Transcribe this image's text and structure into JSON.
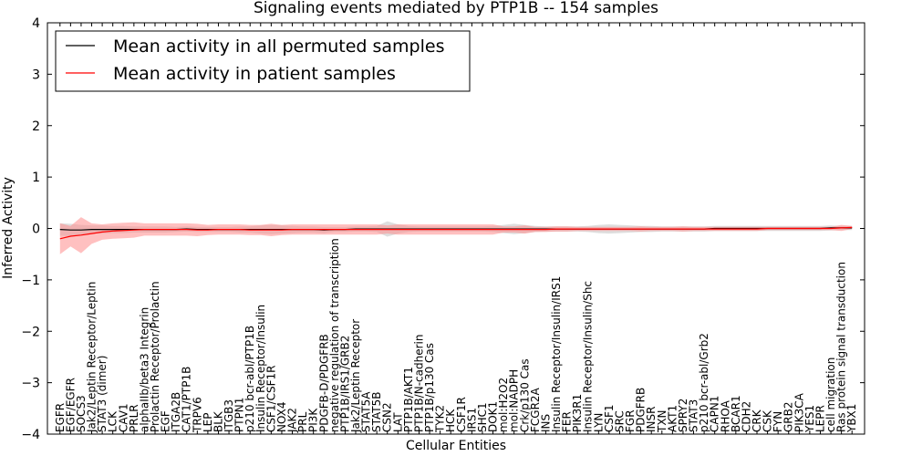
{
  "chart_data": {
    "type": "line",
    "title": "Signaling events mediated by PTP1B -- 154 samples",
    "xlabel": "Cellular Entities",
    "ylabel": "Inferred Activity",
    "ylim": [
      -4,
      4
    ],
    "yticks": [
      -4,
      -3,
      -2,
      -1,
      0,
      1,
      2,
      3,
      4
    ],
    "categories": [
      "EGFR",
      "EGF/EGFR",
      "SOCS3",
      "Jak2/Leptin Receptor/Leptin",
      "STAT3 (dimer)",
      "LCK",
      "CAV1",
      "PRLR",
      "alphaIIb/beta3 Integrin",
      "Prolactin Receptor/Prolactin",
      "EGF",
      "ITGA2B",
      "CAT1/PTP1B",
      "TRPV6",
      "LEP",
      "BLK",
      "ITGB3",
      "PTPN1",
      "p210 bcr-abl/PTP1B",
      "Insulin Receptor/Insulin",
      "CSF1/CSF1R",
      "NOX4",
      "JAK2",
      "PRL",
      "PI3K",
      "PDGFB-D/PDGFRB",
      "negative regulation of transcription",
      "PTP1B/IRS1/GRB2",
      "Jak2/Leptin Receptor",
      "STAT5A",
      "STAT5B",
      "CSN2",
      "LAT",
      "PTP1B/AKT1",
      "PTP1B/N-cadherin",
      "PTP1B/p130 Cas",
      "TYK2",
      "HCK",
      "CSF1R",
      "IRS1",
      "SHC1",
      "DOK1",
      "mol:H2O2",
      "mol:NADPH",
      "Crk/p130 Cas",
      "FCGR2A",
      "INS",
      "Insulin Receptor/Insulin/IRS1",
      "FER",
      "PIK3R1",
      "Insulin Receptor/Insulin/Shc",
      "LYN",
      "CSF1",
      "SRC",
      "FGR",
      "PDGFRB",
      "INSR",
      "TXN",
      "AKT1",
      "SPRY2",
      "STAT3",
      "p210 bcr-abl/Grb2",
      "CAPN1",
      "RHOA",
      "BCAR1",
      "CDH2",
      "CRK",
      "CSK",
      "FYN",
      "GRB2",
      "PIK3CA",
      "YES1",
      "LEPR",
      "cell migration",
      "Ras protein signal transduction",
      "YBX1"
    ],
    "series": [
      {
        "name": "Mean activity in all permuted samples",
        "color": "#000000",
        "values": [
          -0.02,
          -0.03,
          -0.03,
          -0.02,
          -0.02,
          -0.02,
          -0.02,
          -0.02,
          -0.02,
          -0.02,
          -0.02,
          -0.02,
          -0.01,
          -0.02,
          -0.02,
          -0.02,
          -0.02,
          -0.02,
          -0.02,
          -0.02,
          -0.02,
          -0.02,
          -0.02,
          -0.02,
          -0.02,
          -0.03,
          -0.02,
          -0.02,
          -0.01,
          -0.01,
          -0.01,
          -0.01,
          -0.01,
          -0.01,
          -0.01,
          -0.01,
          -0.01,
          -0.01,
          -0.01,
          -0.01,
          -0.01,
          -0.01,
          -0.01,
          -0.01,
          -0.01,
          -0.01,
          -0.01,
          -0.01,
          -0.01,
          -0.01,
          -0.01,
          -0.01,
          -0.01,
          -0.01,
          -0.01,
          -0.01,
          -0.01,
          -0.01,
          -0.01,
          -0.01,
          -0.01,
          -0.01,
          0.0,
          0.0,
          0.0,
          0.0,
          0.0,
          0.0,
          0.0,
          0.0,
          0.0,
          0.0,
          0.0,
          0.01,
          0.01,
          0.01
        ],
        "band": [
          0.12,
          0.12,
          0.1,
          0.08,
          0.08,
          0.07,
          0.07,
          0.06,
          0.06,
          0.06,
          0.06,
          0.05,
          0.05,
          0.05,
          0.05,
          0.05,
          0.05,
          0.06,
          0.06,
          0.08,
          0.09,
          0.08,
          0.07,
          0.06,
          0.06,
          0.06,
          0.05,
          0.05,
          0.05,
          0.05,
          0.06,
          0.15,
          0.09,
          0.06,
          0.05,
          0.05,
          0.05,
          0.05,
          0.05,
          0.05,
          0.05,
          0.06,
          0.08,
          0.1,
          0.08,
          0.06,
          0.05,
          0.05,
          0.05,
          0.05,
          0.06,
          0.08,
          0.09,
          0.08,
          0.07,
          0.06,
          0.06,
          0.05,
          0.05,
          0.05,
          0.05,
          0.05,
          0.05,
          0.05,
          0.05,
          0.05,
          0.05,
          0.05,
          0.05,
          0.05,
          0.05,
          0.05,
          0.05,
          0.05,
          0.04,
          0.04
        ]
      },
      {
        "name": "Mean activity in patient samples",
        "color": "#ff0000",
        "values": [
          -0.2,
          -0.15,
          -0.13,
          -0.1,
          -0.07,
          -0.05,
          -0.04,
          -0.03,
          -0.02,
          -0.02,
          -0.02,
          -0.02,
          -0.02,
          -0.03,
          -0.03,
          -0.02,
          -0.02,
          -0.02,
          -0.03,
          -0.03,
          -0.03,
          -0.03,
          -0.02,
          -0.02,
          -0.02,
          -0.02,
          -0.02,
          -0.02,
          -0.02,
          -0.02,
          -0.02,
          -0.02,
          -0.02,
          -0.02,
          -0.02,
          -0.02,
          -0.02,
          -0.02,
          -0.02,
          -0.02,
          -0.02,
          -0.02,
          -0.02,
          -0.02,
          -0.02,
          -0.02,
          -0.02,
          -0.01,
          -0.01,
          -0.01,
          -0.01,
          -0.01,
          -0.01,
          -0.01,
          -0.01,
          -0.01,
          -0.01,
          -0.01,
          -0.01,
          -0.01,
          -0.01,
          -0.01,
          -0.01,
          -0.01,
          -0.01,
          -0.01,
          -0.01,
          0.0,
          0.0,
          0.0,
          0.0,
          0.0,
          0.0,
          0.0,
          0.01,
          0.02
        ],
        "band": [
          0.3,
          0.2,
          0.35,
          0.2,
          0.15,
          0.15,
          0.15,
          0.15,
          0.12,
          0.12,
          0.12,
          0.12,
          0.12,
          0.12,
          0.1,
          0.1,
          0.1,
          0.1,
          0.1,
          0.1,
          0.12,
          0.1,
          0.1,
          0.1,
          0.1,
          0.1,
          0.1,
          0.1,
          0.1,
          0.1,
          0.1,
          0.08,
          0.1,
          0.1,
          0.1,
          0.1,
          0.1,
          0.1,
          0.1,
          0.1,
          0.1,
          0.1,
          0.06,
          0.06,
          0.08,
          0.05,
          0.05,
          0.05,
          0.05,
          0.04,
          0.04,
          0.04,
          0.04,
          0.04,
          0.04,
          0.05,
          0.04,
          0.04,
          0.04,
          0.05,
          0.04,
          0.04,
          0.04,
          0.04,
          0.04,
          0.04,
          0.04,
          0.03,
          0.03,
          0.03,
          0.03,
          0.03,
          0.03,
          0.03,
          0.06,
          0.03
        ]
      }
    ],
    "legend_position": "top-left"
  }
}
